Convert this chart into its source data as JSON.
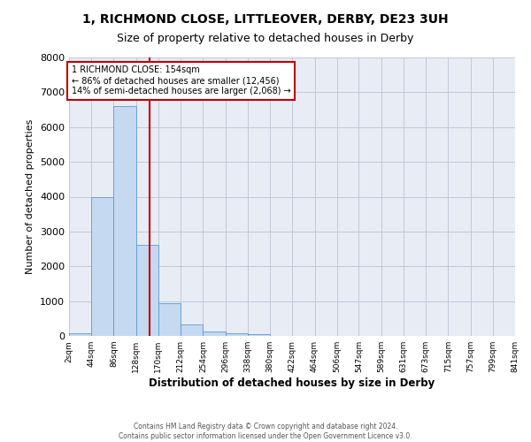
{
  "title_line1": "1, RICHMOND CLOSE, LITTLEOVER, DERBY, DE23 3UH",
  "title_line2": "Size of property relative to detached houses in Derby",
  "xlabel": "Distribution of detached houses by size in Derby",
  "ylabel": "Number of detached properties",
  "bar_edges": [
    2,
    44,
    86,
    128,
    170,
    212,
    254,
    296,
    338,
    380,
    422,
    464,
    506,
    547,
    589,
    631,
    673,
    715,
    757,
    799,
    841
  ],
  "bar_heights": [
    70,
    3980,
    6600,
    2620,
    950,
    320,
    130,
    80,
    60,
    0,
    0,
    0,
    0,
    0,
    0,
    0,
    0,
    0,
    0,
    0
  ],
  "bar_color": "#c5d9f0",
  "bar_edgecolor": "#5b9bd5",
  "property_size": 154,
  "vline_color": "#c00000",
  "annotation_box_edgecolor": "#c00000",
  "annotation_line1": "1 RICHMOND CLOSE: 154sqm",
  "annotation_line2": "← 86% of detached houses are smaller (12,456)",
  "annotation_line3": "14% of semi-detached houses are larger (2,068) →",
  "ylim": [
    0,
    8000
  ],
  "yticks": [
    0,
    1000,
    2000,
    3000,
    4000,
    5000,
    6000,
    7000,
    8000
  ],
  "background_color": "#ffffff",
  "grid_color": "#c0c8d8",
  "tick_labels": [
    "2sqm",
    "44sqm",
    "86sqm",
    "128sqm",
    "170sqm",
    "212sqm",
    "254sqm",
    "296sqm",
    "338sqm",
    "380sqm",
    "422sqm",
    "464sqm",
    "506sqm",
    "547sqm",
    "589sqm",
    "631sqm",
    "673sqm",
    "715sqm",
    "757sqm",
    "799sqm",
    "841sqm"
  ],
  "footer_line1": "Contains HM Land Registry data © Crown copyright and database right 2024.",
  "footer_line2": "Contains public sector information licensed under the Open Government Licence v3.0."
}
